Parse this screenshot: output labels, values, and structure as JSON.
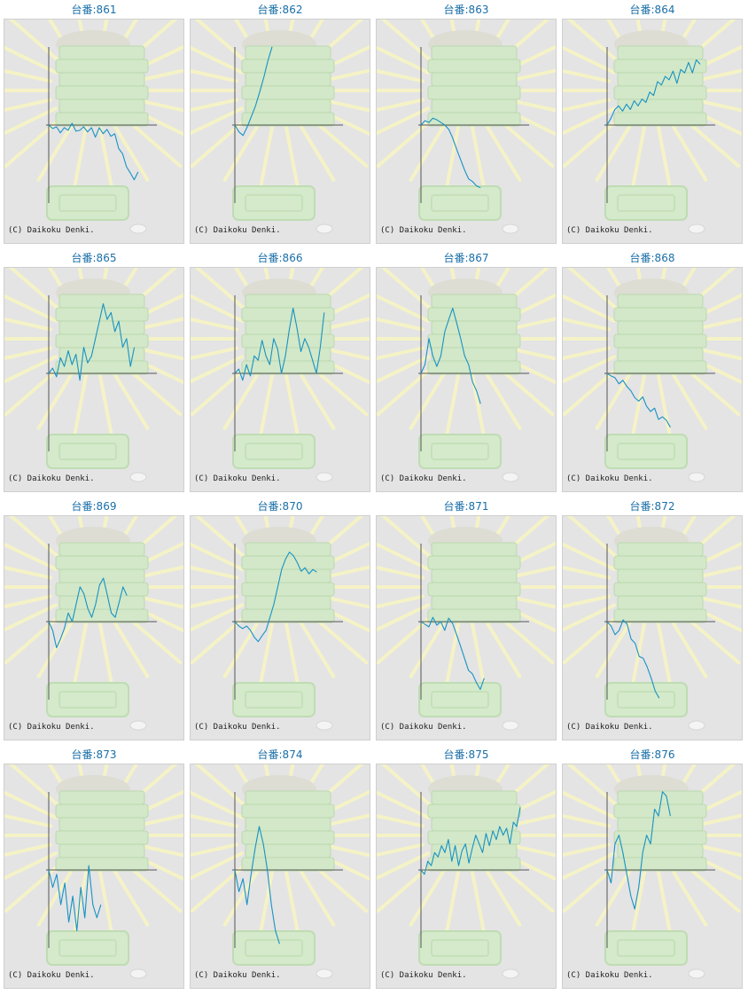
{
  "page": {
    "credit_text": "(C) Daikoku Denki.",
    "accent_color": "#1a6fa8",
    "line_color": "#1792c4"
  },
  "chart_data": [
    {
      "type": "line",
      "title": "台番:861",
      "values": [
        0,
        -4,
        -2,
        -9,
        -3,
        -6,
        2,
        -7,
        -6,
        -2,
        -8,
        -3,
        -14,
        -3,
        -10,
        -5,
        -13,
        -10,
        -27,
        -33,
        -48,
        -55,
        -63,
        -54
      ]
    },
    {
      "type": "line",
      "title": "台番:862",
      "values": [
        0,
        -8,
        -12,
        -2,
        10,
        22,
        38,
        55,
        74,
        90
      ]
    },
    {
      "type": "line",
      "title": "台番:863",
      "values": [
        0,
        5,
        3,
        8,
        6,
        3,
        0,
        -5,
        -15,
        -28,
        -40,
        -52,
        -62,
        -65,
        -70,
        -72
      ]
    },
    {
      "type": "line",
      "title": "台番:864",
      "values": [
        0,
        8,
        18,
        22,
        16,
        24,
        18,
        28,
        22,
        30,
        26,
        38,
        34,
        50,
        46,
        56,
        52,
        62,
        48,
        64,
        60,
        72,
        60,
        75,
        70
      ]
    },
    {
      "type": "line",
      "title": "台番:865",
      "values": [
        0,
        6,
        -4,
        18,
        8,
        26,
        10,
        22,
        -8,
        30,
        12,
        20,
        40,
        60,
        80,
        62,
        70,
        48,
        60,
        30,
        40,
        8,
        30
      ]
    },
    {
      "type": "line",
      "title": "台番:866",
      "values": [
        0,
        5,
        -8,
        10,
        -3,
        20,
        15,
        38,
        20,
        10,
        40,
        28,
        0,
        20,
        50,
        75,
        52,
        25,
        40,
        30,
        15,
        0,
        30,
        70
      ]
    },
    {
      "type": "line",
      "title": "台番:867",
      "values": [
        0,
        10,
        40,
        20,
        8,
        20,
        48,
        62,
        75,
        58,
        40,
        20,
        10,
        -10,
        -20,
        -35
      ]
    },
    {
      "type": "line",
      "title": "台番:868",
      "values": [
        0,
        -3,
        -5,
        -12,
        -8,
        -15,
        -20,
        -28,
        -32,
        -27,
        -38,
        -44,
        -40,
        -53,
        -50,
        -54,
        -62
      ]
    },
    {
      "type": "line",
      "title": "台番:869",
      "values": [
        0,
        -10,
        -30,
        -20,
        -8,
        10,
        0,
        20,
        40,
        32,
        15,
        5,
        20,
        42,
        50,
        30,
        10,
        5,
        22,
        40,
        30
      ]
    },
    {
      "type": "line",
      "title": "台番:870",
      "values": [
        0,
        -5,
        -8,
        -5,
        -10,
        -18,
        -23,
        -16,
        -10,
        5,
        20,
        40,
        60,
        72,
        80,
        76,
        68,
        58,
        62,
        55,
        60,
        57
      ]
    },
    {
      "type": "line",
      "title": "台番:871",
      "values": [
        0,
        -3,
        -6,
        5,
        -4,
        0,
        -10,
        4,
        -2,
        -15,
        -28,
        -42,
        -56,
        -60,
        -70,
        -78,
        -65
      ]
    },
    {
      "type": "line",
      "title": "台番:872",
      "values": [
        0,
        -5,
        -15,
        -10,
        2,
        -3,
        -20,
        -25,
        -40,
        -42,
        -52,
        -65,
        -80,
        -88
      ]
    },
    {
      "type": "line",
      "title": "台番:873",
      "values": [
        0,
        -20,
        -5,
        -40,
        -15,
        -60,
        -30,
        -70,
        -20,
        -55,
        5,
        -40,
        -55,
        -40
      ]
    },
    {
      "type": "line",
      "title": "台番:874",
      "values": [
        0,
        -25,
        -10,
        -40,
        -5,
        25,
        50,
        30,
        0,
        -40,
        -70,
        -85
      ]
    },
    {
      "type": "line",
      "title": "台番:875",
      "values": [
        0,
        -5,
        10,
        5,
        20,
        15,
        28,
        20,
        35,
        10,
        28,
        5,
        22,
        30,
        8,
        25,
        40,
        30,
        20,
        42,
        28,
        45,
        35,
        50,
        40,
        48,
        30,
        55,
        50,
        72
      ]
    },
    {
      "type": "line",
      "title": "台番:876",
      "values": [
        0,
        -15,
        30,
        40,
        20,
        -5,
        -30,
        -45,
        -20,
        20,
        40,
        30,
        70,
        62,
        90,
        85,
        62
      ]
    }
  ]
}
